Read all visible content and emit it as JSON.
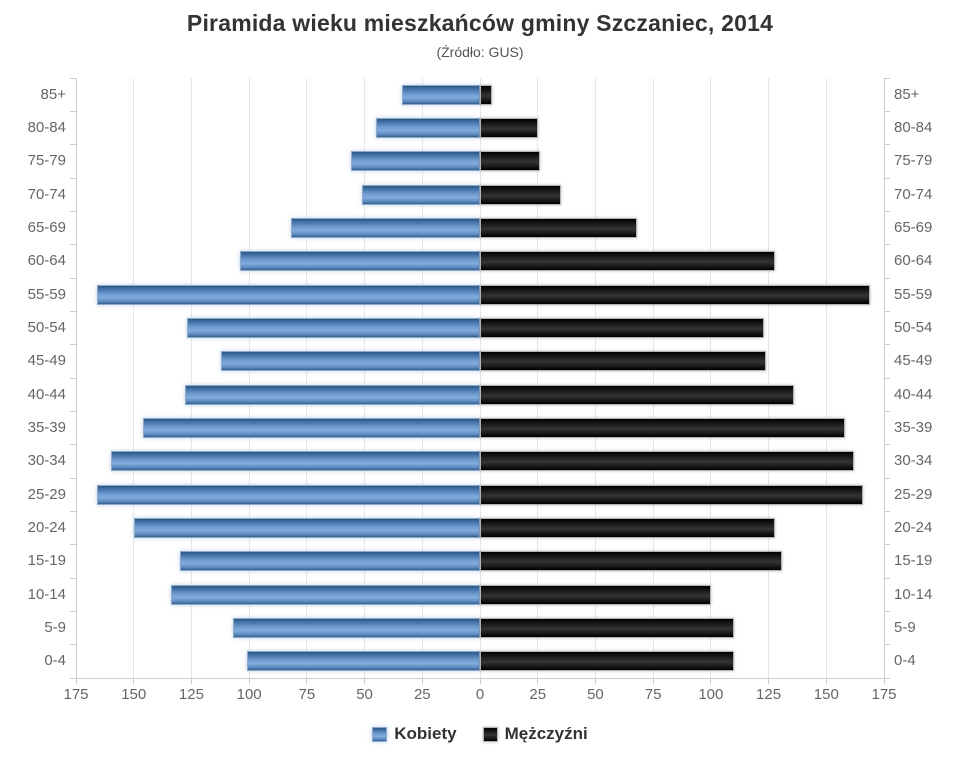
{
  "title": "Piramida wieku mieszkańców gminy Szczaniec, 2014",
  "subtitle": "(Źródło: GUS)",
  "chart_data": {
    "type": "bar",
    "variant": "population-pyramid",
    "title": "Piramida wieku mieszkańców gminy Szczaniec, 2014",
    "subtitle": "(Źródło: GUS)",
    "categories": [
      "85+",
      "80-84",
      "75-79",
      "70-74",
      "65-69",
      "60-64",
      "55-59",
      "50-54",
      "45-49",
      "40-44",
      "35-39",
      "30-34",
      "25-29",
      "20-24",
      "15-19",
      "10-14",
      "5-9",
      "0-4"
    ],
    "series": [
      {
        "name": "Kobiety",
        "side": "left",
        "color": "#5585bd",
        "values": [
          34,
          45,
          56,
          51,
          82,
          104,
          166,
          127,
          112,
          128,
          146,
          160,
          166,
          150,
          130,
          134,
          107,
          101
        ]
      },
      {
        "name": "Mężczyźni",
        "side": "right",
        "color": "#1a1a1a",
        "values": [
          5,
          25,
          26,
          35,
          68,
          128,
          169,
          123,
          124,
          136,
          158,
          162,
          166,
          128,
          131,
          100,
          110,
          110
        ]
      }
    ],
    "x_axis": {
      "limit": 175,
      "tick_step": 25,
      "tick_labels": [
        175,
        150,
        125,
        100,
        75,
        50,
        25,
        0,
        25,
        50,
        75,
        100,
        125,
        150,
        175
      ]
    },
    "grid": true,
    "legend_position": "bottom",
    "colors": {
      "female_bar": "#5585bd",
      "male_bar": "#1a1a1a",
      "grid": "#e7e7e7",
      "axis": "#cccccc",
      "label_text": "#666666",
      "title_text": "#333333",
      "subtitle_text": "#555555"
    }
  }
}
